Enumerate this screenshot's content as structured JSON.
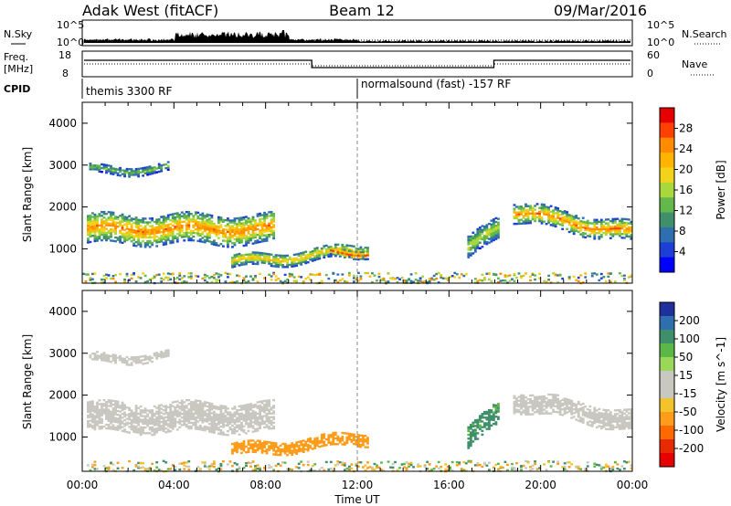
{
  "header": {
    "title_left": "Adak West (fitACF)",
    "title_center": "Beam 12",
    "title_right": "09/Mar/2016"
  },
  "strip_labels": {
    "nsky": "N.Sky",
    "nsearch": "N.Search",
    "freq_line1": "Freq.",
    "freq_line2": "[MHz]",
    "nave": "Nave",
    "cpid": "CPID",
    "noise_ticks_left": [
      "10^5",
      "10^0"
    ],
    "noise_ticks_right": [
      "10^5",
      "10^0"
    ],
    "freq_ticks": [
      "18",
      "8"
    ],
    "nave_ticks": [
      "60",
      "0"
    ]
  },
  "cpid_segments": [
    {
      "label": "themis 3300 RF",
      "start_hour": 0,
      "end_hour": 12
    },
    {
      "label": "normalsound (fast) -157 RF",
      "start_hour": 12,
      "end_hour": 24
    }
  ],
  "chart_data": [
    {
      "type": "heatmap",
      "name": "power",
      "ylabel": "Slant Range [km]",
      "xlim": [
        0,
        24
      ],
      "ylim": [
        180,
        4500
      ],
      "yticks": [
        1000,
        2000,
        3000,
        4000
      ],
      "colorbar": {
        "label": "Power [dB]",
        "ticks": [
          "28",
          "24",
          "20",
          "16",
          "12",
          "8",
          "4"
        ],
        "colors": [
          "#e60000",
          "#ff4000",
          "#ff8c00",
          "#ffb400",
          "#f2d21a",
          "#a8d83c",
          "#62b84a",
          "#3f8f6a",
          "#2f6fb0",
          "#1d3fd8",
          "#0000ff"
        ]
      },
      "regions": [
        {
          "t0": 0.2,
          "t1": 8.3,
          "r0_start": 1500,
          "r0_end": 1500,
          "width": 700,
          "peak": 26,
          "note": "main band near 1500 km"
        },
        {
          "t0": 0.3,
          "t1": 3.8,
          "r0_start": 2900,
          "r0_end": 2950,
          "width": 200,
          "peak": 14
        },
        {
          "t0": 6.5,
          "t1": 12.4,
          "r0_start": 700,
          "r0_end": 1000,
          "width": 300,
          "peak": 22
        },
        {
          "t0": 10.8,
          "t1": 12.4,
          "r0_start": 950,
          "r0_end": 950,
          "width": 200,
          "peak": 30
        },
        {
          "t0": 16.8,
          "t1": 18.2,
          "r0_start": 1000,
          "r0_end": 1600,
          "width": 500,
          "peak": 18
        },
        {
          "t0": 18.8,
          "t1": 24.0,
          "r0_start": 1900,
          "r0_end": 1400,
          "width": 450,
          "peak": 26
        }
      ]
    },
    {
      "type": "heatmap",
      "name": "velocity",
      "ylabel": "Slant Range [km]",
      "xlabel": "Time UT",
      "xlim": [
        0,
        24
      ],
      "ylim": [
        180,
        4500
      ],
      "xticks": [
        "00:00",
        "04:00",
        "08:00",
        "12:00",
        "16:00",
        "20:00",
        "00:00"
      ],
      "yticks": [
        1000,
        2000,
        3000,
        4000
      ],
      "colorbar": {
        "label": "Velocity [m s^-1]",
        "ticks": [
          "200",
          "100",
          "50",
          "15",
          "-15",
          "-50",
          "-100",
          "-200"
        ],
        "colors": [
          "#1f2f9c",
          "#2f6fb0",
          "#3f8f6a",
          "#5ab847",
          "#9bd85a",
          "#c8c8c0",
          "#c8c8c0",
          "#f2c32a",
          "#ff9c1a",
          "#ff6a00",
          "#e82a00",
          "#e60000"
        ]
      },
      "regions": [
        {
          "t0": 0.2,
          "t1": 8.3,
          "r0_start": 1500,
          "r0_end": 1500,
          "width": 700,
          "velocity": 0
        },
        {
          "t0": 0.3,
          "t1": 3.8,
          "r0_start": 2900,
          "r0_end": 2950,
          "width": 200,
          "velocity": 0
        },
        {
          "t0": 6.5,
          "t1": 12.4,
          "r0_start": 700,
          "r0_end": 1000,
          "width": 300,
          "velocity": -45
        },
        {
          "t0": 16.8,
          "t1": 18.2,
          "r0_start": 1000,
          "r0_end": 1600,
          "width": 500,
          "velocity": 40
        },
        {
          "t0": 18.8,
          "t1": 24.0,
          "r0_start": 1900,
          "r0_end": 1400,
          "width": 450,
          "velocity": 0
        }
      ]
    }
  ]
}
